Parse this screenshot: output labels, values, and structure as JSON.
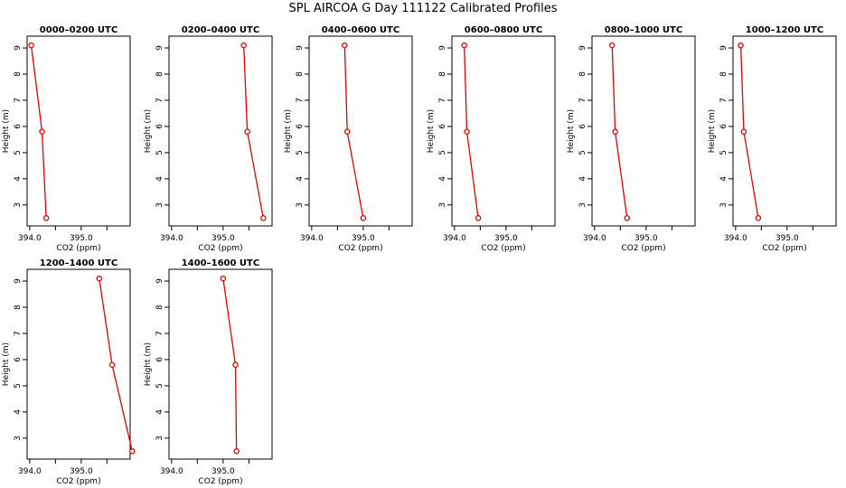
{
  "figure": {
    "title": "SPL AIRCOA G  Day 111122  Calibrated Profiles",
    "line_color": "#e00000"
  },
  "chart_data": [
    {
      "type": "line",
      "title": "0000–0200 UTC",
      "xlabel": "CO2 (ppm)",
      "ylabel": "Height (m)",
      "xlim": [
        393.95,
        395.95
      ],
      "ylim": [
        2.2,
        9.45
      ],
      "xticks": [
        "394.0",
        "395.0"
      ],
      "yticks": [
        "3",
        "4",
        "5",
        "6",
        "7",
        "8",
        "9"
      ],
      "series": [
        {
          "x": [
            394.03,
            394.24,
            394.32
          ],
          "y": [
            9.1,
            5.8,
            2.5
          ]
        }
      ]
    },
    {
      "type": "line",
      "title": "0200–0400 UTC",
      "xlabel": "CO2 (ppm)",
      "ylabel": "Height (m)",
      "xlim": [
        393.95,
        395.95
      ],
      "ylim": [
        2.2,
        9.45
      ],
      "xticks": [
        "394.0",
        "395.0"
      ],
      "yticks": [
        "3",
        "4",
        "5",
        "6",
        "7",
        "8",
        "9"
      ],
      "series": [
        {
          "x": [
            395.4,
            395.47,
            395.78
          ],
          "y": [
            9.1,
            5.8,
            2.5
          ]
        }
      ]
    },
    {
      "type": "line",
      "title": "0400–0600 UTC",
      "xlabel": "CO2 (ppm)",
      "ylabel": "Height (m)",
      "xlim": [
        393.95,
        395.95
      ],
      "ylim": [
        2.2,
        9.45
      ],
      "xticks": [
        "394.0",
        "395.0"
      ],
      "yticks": [
        "3",
        "4",
        "5",
        "6",
        "7",
        "8",
        "9"
      ],
      "series": [
        {
          "x": [
            394.64,
            394.69,
            395.0
          ],
          "y": [
            9.1,
            5.8,
            2.5
          ]
        }
      ]
    },
    {
      "type": "line",
      "title": "0600–0800 UTC",
      "xlabel": "CO2 (ppm)",
      "ylabel": "Height (m)",
      "xlim": [
        393.95,
        395.95
      ],
      "ylim": [
        2.2,
        9.45
      ],
      "xticks": [
        "394.0",
        "395.0"
      ],
      "yticks": [
        "3",
        "4",
        "5",
        "6",
        "7",
        "8",
        "9"
      ],
      "series": [
        {
          "x": [
            394.19,
            394.24,
            394.46
          ],
          "y": [
            9.1,
            5.8,
            2.5
          ]
        }
      ]
    },
    {
      "type": "line",
      "title": "0800–1000 UTC",
      "xlabel": "CO2 (ppm)",
      "ylabel": "Height (m)",
      "xlim": [
        393.95,
        395.95
      ],
      "ylim": [
        2.2,
        9.45
      ],
      "xticks": [
        "394.0",
        "395.0"
      ],
      "yticks": [
        "3",
        "4",
        "5",
        "6",
        "7",
        "8",
        "9"
      ],
      "series": [
        {
          "x": [
            394.34,
            394.4,
            394.63
          ],
          "y": [
            9.1,
            5.8,
            2.5
          ]
        }
      ]
    },
    {
      "type": "line",
      "title": "1000–1200 UTC",
      "xlabel": "CO2 (ppm)",
      "ylabel": "Height (m)",
      "xlim": [
        393.95,
        395.95
      ],
      "ylim": [
        2.2,
        9.45
      ],
      "xticks": [
        "394.0",
        "395.0"
      ],
      "yticks": [
        "3",
        "4",
        "5",
        "6",
        "7",
        "8",
        "9"
      ],
      "series": [
        {
          "x": [
            394.1,
            394.16,
            394.44
          ],
          "y": [
            9.1,
            5.8,
            2.5
          ]
        }
      ]
    },
    {
      "type": "line",
      "title": "1200–1400 UTC",
      "xlabel": "CO2 (ppm)",
      "ylabel": "Height (m)",
      "xlim": [
        393.95,
        395.95
      ],
      "ylim": [
        2.2,
        9.45
      ],
      "xticks": [
        "394.0",
        "395.0"
      ],
      "yticks": [
        "3",
        "4",
        "5",
        "6",
        "7",
        "8",
        "9"
      ],
      "series": [
        {
          "x": [
            395.35,
            395.6,
            395.99
          ],
          "y": [
            9.1,
            5.8,
            2.5
          ]
        }
      ]
    },
    {
      "type": "line",
      "title": "1400–1600 UTC",
      "xlabel": "CO2 (ppm)",
      "ylabel": "Height (m)",
      "xlim": [
        393.95,
        395.95
      ],
      "ylim": [
        2.2,
        9.45
      ],
      "xticks": [
        "394.0",
        "395.0"
      ],
      "yticks": [
        "3",
        "4",
        "5",
        "6",
        "7",
        "8",
        "9"
      ],
      "series": [
        {
          "x": [
            395.0,
            395.24,
            395.26
          ],
          "y": [
            9.1,
            5.8,
            2.5
          ]
        }
      ]
    }
  ]
}
